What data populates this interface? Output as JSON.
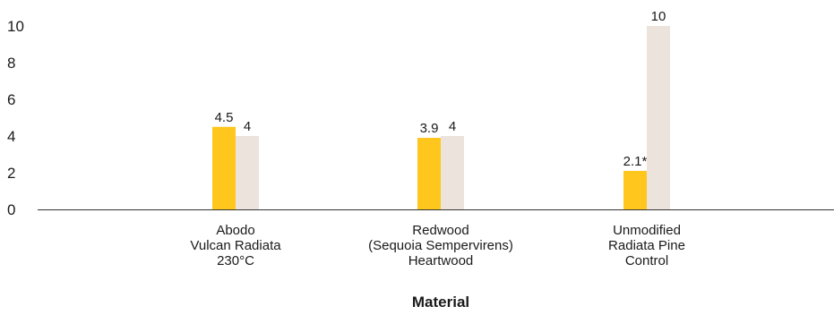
{
  "chart_data": {
    "type": "bar",
    "categories": [
      [
        "Abodo",
        "Vulcan Radiata",
        "230°C"
      ],
      [
        "Redwood",
        "(Sequoia Sempervirens)",
        "Heartwood"
      ],
      [
        "Unmodified",
        "Radiata Pine",
        "Control"
      ]
    ],
    "series": [
      {
        "values": [
          4.5,
          3.9,
          2.1
        ],
        "labels": [
          "4.5",
          "3.9",
          "2.1*"
        ],
        "color": "#FFC61E"
      },
      {
        "values": [
          4,
          4,
          10
        ],
        "labels": [
          "4",
          "4",
          "10"
        ],
        "color": "#EBE3DC"
      }
    ],
    "xlabel": "Material",
    "ylabel": "",
    "ylim": [
      0,
      10
    ],
    "yticks": [
      0,
      2,
      4,
      6,
      8,
      10
    ],
    "grid": false,
    "legend": "none"
  }
}
